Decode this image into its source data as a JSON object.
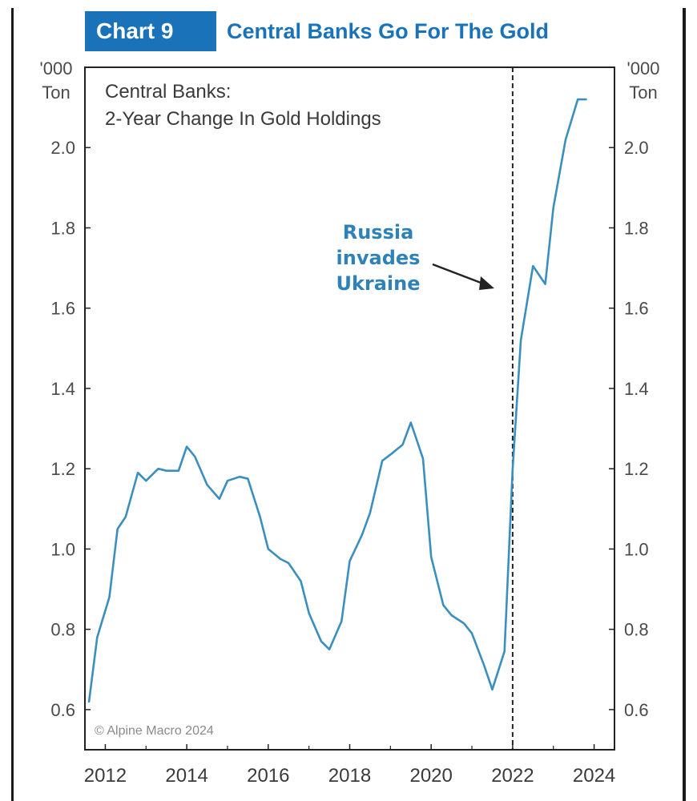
{
  "header": {
    "badge": "Chart 9",
    "title": "Central Banks Go For The Gold"
  },
  "chart_data": {
    "type": "line",
    "subtitle_lines": [
      "Central Banks:",
      "2-Year Change In Gold Holdings"
    ],
    "left_unit": [
      "'000",
      "Ton"
    ],
    "right_unit": [
      "'000",
      "Ton"
    ],
    "copyright": "© Alpine Macro 2024",
    "annotation": {
      "lines": [
        "Russia",
        "invades",
        "Ukraine"
      ],
      "color": "#2e82b8",
      "event_x": 2022.0
    },
    "ylim": [
      0.5,
      2.2
    ],
    "yticks": [
      0.6,
      0.8,
      1.0,
      1.2,
      1.4,
      1.6,
      1.8,
      2.0
    ],
    "ytick_labels": [
      "0.6",
      "0.8",
      "1.0",
      "1.2",
      "1.4",
      "1.6",
      "1.8",
      "2.0"
    ],
    "xlim": [
      2011.5,
      2024.5
    ],
    "xticks": [
      2012,
      2014,
      2016,
      2018,
      2020,
      2022,
      2024
    ],
    "xtick_labels": [
      "2012",
      "2014",
      "2016",
      "2018",
      "2020",
      "2022",
      "2024"
    ],
    "grid": false,
    "line_color": "#3a8fbf",
    "series": [
      {
        "x": [
          2011.6,
          2011.8,
          2012.1,
          2012.3,
          2012.5,
          2012.8,
          2013.0,
          2013.3,
          2013.5,
          2013.8,
          2014.0,
          2014.2,
          2014.5,
          2014.8,
          2015.0,
          2015.3,
          2015.5,
          2015.8,
          2016.0,
          2016.3,
          2016.5,
          2016.8,
          2017.0,
          2017.3,
          2017.5,
          2017.8,
          2018.0,
          2018.3,
          2018.5,
          2018.8,
          2019.0,
          2019.3,
          2019.5,
          2019.8,
          2020.0,
          2020.3,
          2020.5,
          2020.8,
          2021.0,
          2021.3,
          2021.5,
          2021.8,
          2022.0,
          2022.2,
          2022.5,
          2022.8,
          2023.0,
          2023.3,
          2023.6,
          2023.8
        ],
        "values": [
          0.62,
          0.78,
          0.88,
          1.05,
          1.08,
          1.19,
          1.17,
          1.2,
          1.195,
          1.195,
          1.255,
          1.23,
          1.16,
          1.125,
          1.17,
          1.18,
          1.175,
          1.08,
          1.0,
          0.975,
          0.965,
          0.92,
          0.84,
          0.77,
          0.75,
          0.82,
          0.97,
          1.035,
          1.09,
          1.22,
          1.235,
          1.26,
          1.315,
          1.225,
          0.98,
          0.86,
          0.835,
          0.815,
          0.79,
          0.71,
          0.65,
          0.745,
          1.2,
          1.52,
          1.705,
          1.66,
          1.85,
          2.02,
          2.12,
          2.12
        ]
      }
    ]
  }
}
